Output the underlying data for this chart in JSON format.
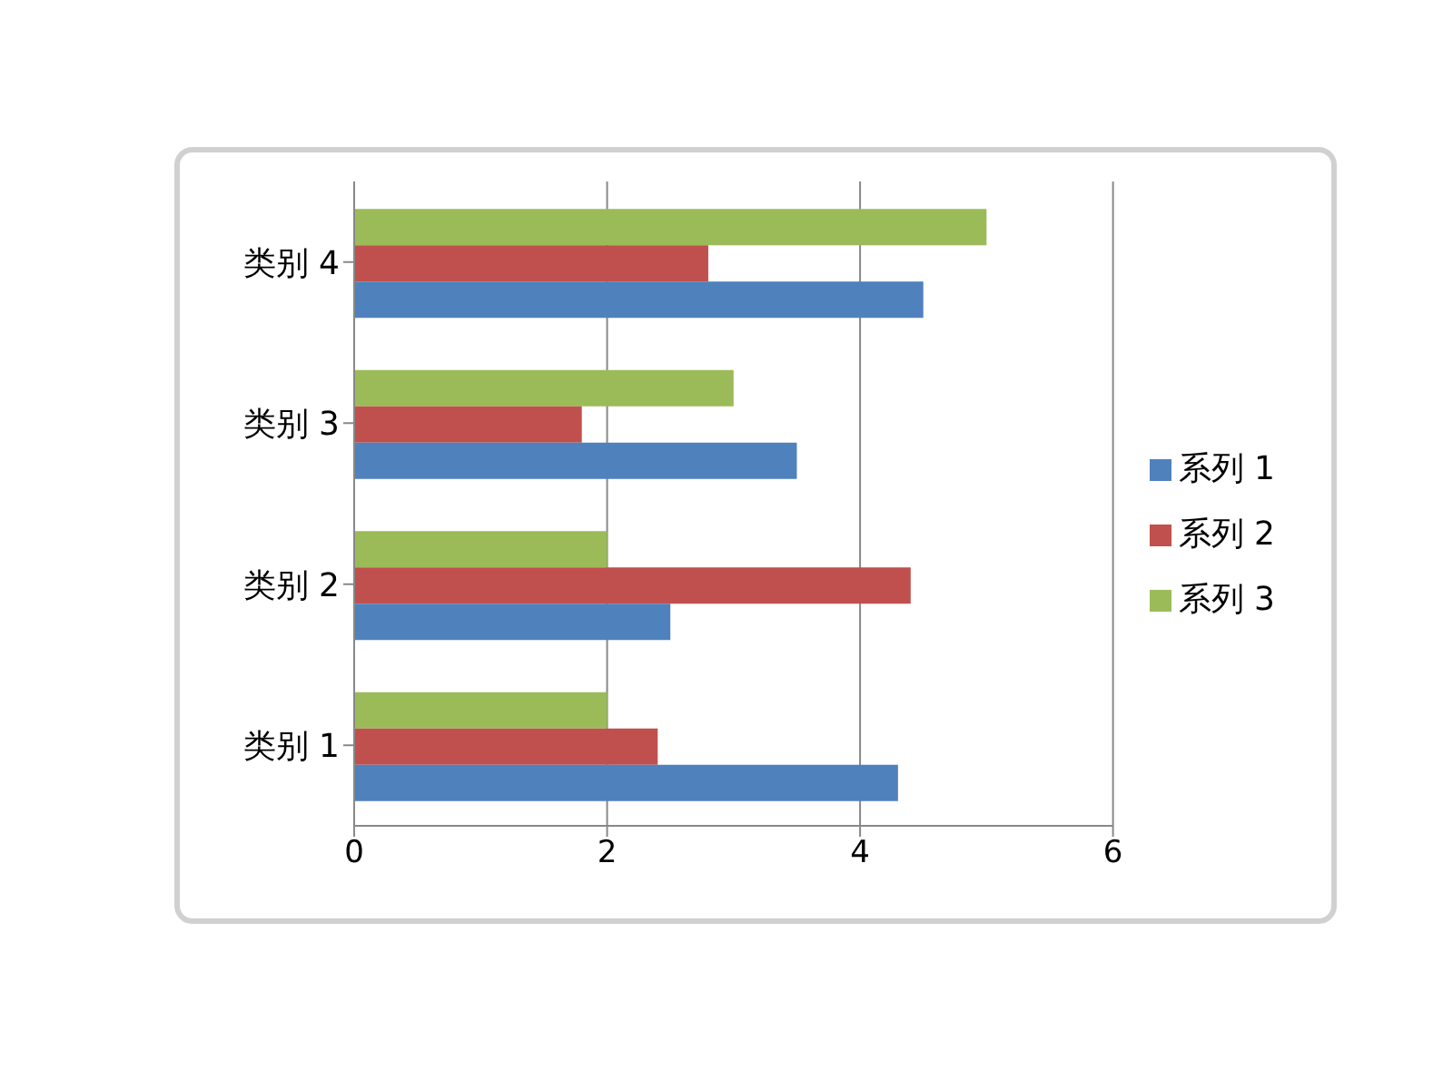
{
  "chart_data": {
    "type": "bar",
    "orientation": "horizontal",
    "categories": [
      "类别 4",
      "类别 3",
      "类别 2",
      "类别 1"
    ],
    "series": [
      {
        "name": "系列 3",
        "color": "#9bbb59",
        "values": [
          5,
          3,
          2,
          2
        ]
      },
      {
        "name": "系列 2",
        "color": "#c0504d",
        "values": [
          2.8,
          1.8,
          4.4,
          2.4
        ]
      },
      {
        "name": "系列 1",
        "color": "#4f81bd",
        "values": [
          4.5,
          3.5,
          2.5,
          4.3
        ]
      }
    ],
    "xlim": [
      0,
      6
    ],
    "xticks": [
      0,
      2,
      4,
      6
    ],
    "grid": "x",
    "legend": "right"
  }
}
